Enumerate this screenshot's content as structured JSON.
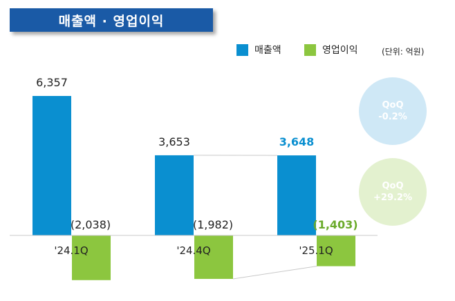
{
  "title": "매출액 · 영업이익",
  "unit": "(단위: 억원)",
  "colors": {
    "sales": "#0a8fd0",
    "op": "#8cc63f",
    "title_bg": "#1a5aa6"
  },
  "chart_data": {
    "type": "bar",
    "categories": [
      "'24.1Q",
      "'24.4Q",
      "'25.1Q"
    ],
    "series": [
      {
        "name": "매출액",
        "values": [
          6357,
          3653,
          3648
        ],
        "labels": [
          "6,357",
          "3,653",
          "3,648"
        ]
      },
      {
        "name": "영업이익",
        "values": [
          -2038,
          -1982,
          -1403
        ],
        "labels": [
          "(2,038)",
          "(1,982)",
          "(1,403)"
        ]
      }
    ],
    "ylim": [
      -2200,
      6400
    ]
  },
  "badges": {
    "sales": {
      "line1": "QoQ",
      "line2": "-0.2%"
    },
    "op": {
      "line1": "QoQ",
      "line2": "+29.2%"
    }
  }
}
